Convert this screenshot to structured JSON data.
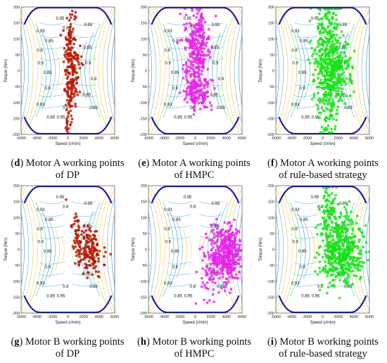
{
  "captions": [
    {
      "letter": "d",
      "line1": "Motor A working points",
      "line2": "of DP"
    },
    {
      "letter": "e",
      "line1": "Motor A working points",
      "line2": "of HMPC"
    },
    {
      "letter": "f",
      "line1": "Motor A working points",
      "line2": "of rule-based strategy"
    },
    {
      "letter": "g",
      "line1": "Motor B working points",
      "line2": "of DP"
    },
    {
      "letter": "h",
      "line1": "Motor B working points",
      "line2": "of HMPC"
    },
    {
      "letter": "i",
      "line1": "Motor B working points",
      "line2": "of rule-based strategy"
    }
  ],
  "chart_data": [
    {
      "id": "d",
      "type": "scatter",
      "xlabel": "Speed (r/min)",
      "ylabel": "Torque (Nm)",
      "xlim": [
        -6000,
        6000
      ],
      "ylim": [
        -200,
        200
      ],
      "xticks": [
        "-6000",
        "-4000",
        "-2000",
        "0",
        "2000",
        "4000",
        "6000"
      ],
      "yticks": [
        "200",
        "150",
        "100",
        "50",
        "0",
        "-50",
        "-100",
        "-150",
        "-200"
      ],
      "contour_labels": [
        "0.93",
        "0.85",
        "0.9",
        "0.8",
        "0.95"
      ],
      "marker_color": "#cc1a00",
      "marker_edge": "#7a1000",
      "clusters": [
        {
          "cx": 300,
          "cy": 90,
          "sx": 350,
          "sy": 60,
          "n": 90
        },
        {
          "cx": 700,
          "cy": 10,
          "sx": 600,
          "sy": 40,
          "n": 60
        },
        {
          "cx": 400,
          "cy": -60,
          "sx": 400,
          "sy": 40,
          "n": 60
        },
        {
          "cx": 0,
          "cy": -140,
          "sx": 250,
          "sy": 30,
          "n": 25
        }
      ]
    },
    {
      "id": "e",
      "type": "scatter",
      "xlabel": "Speed (r/min)",
      "ylabel": "Torque (Nm)",
      "xlim": [
        -6000,
        6000
      ],
      "ylim": [
        -200,
        200
      ],
      "xticks": [
        "-6000",
        "-4000",
        "-2000",
        "0",
        "2000",
        "4000",
        "6000"
      ],
      "yticks": [
        "200",
        "150",
        "100",
        "50",
        "0",
        "-50",
        "-100",
        "-150",
        "-200"
      ],
      "contour_labels": [
        "0.93",
        "0.85",
        "0.9",
        "0.8",
        "0.95"
      ],
      "marker_color": "#ff33ff",
      "marker_edge": "#b300b3",
      "clusters": [
        {
          "cx": 200,
          "cy": 80,
          "sx": 800,
          "sy": 55,
          "n": 260
        },
        {
          "cx": 300,
          "cy": -70,
          "sx": 900,
          "sy": 25,
          "n": 140
        },
        {
          "cx": -300,
          "cy": 0,
          "sx": 600,
          "sy": 60,
          "n": 50
        }
      ]
    },
    {
      "id": "f",
      "type": "scatter",
      "xlabel": "Speed (r/min)",
      "ylabel": "Torque (Nm)",
      "xlim": [
        -6000,
        6000
      ],
      "ylim": [
        -200,
        200
      ],
      "xticks": [
        "-6000",
        "-4000",
        "-2000",
        "0",
        "2000",
        "4000",
        "6000"
      ],
      "yticks": [
        "200",
        "150",
        "100",
        "50",
        "0",
        "-50",
        "-100",
        "-150",
        "-200"
      ],
      "contour_labels": [
        "0.93",
        "0.85",
        "0.9",
        "0.8",
        "0.95"
      ],
      "marker_color": "#1aff1a",
      "marker_edge": "#00a000",
      "clusters": [
        {
          "cx": 800,
          "cy": 20,
          "sx": 900,
          "sy": 100,
          "n": 520
        },
        {
          "cx": 2400,
          "cy": 0,
          "sx": 900,
          "sy": 50,
          "n": 80
        }
      ]
    },
    {
      "id": "g",
      "type": "scatter",
      "xlabel": "Speed (r/min)",
      "ylabel": "Torque (Nm)",
      "xlim": [
        -6000,
        6000
      ],
      "ylim": [
        -200,
        200
      ],
      "xticks": [
        "-6000",
        "-4000",
        "-2000",
        "0",
        "2000",
        "4000",
        "6000"
      ],
      "yticks": [
        "200",
        "150",
        "100",
        "50",
        "0",
        "-50",
        "-100",
        "-150",
        "-200"
      ],
      "contour_labels": [
        "0.93",
        "0.85",
        "0.9",
        "0.8",
        "0.95"
      ],
      "marker_color": "#cc1a00",
      "marker_edge": "#7a1000",
      "clusters": [
        {
          "cx": 2600,
          "cy": 0,
          "sx": 900,
          "sy": 35,
          "n": 130
        },
        {
          "cx": 1200,
          "cy": 70,
          "sx": 500,
          "sy": 40,
          "n": 30
        },
        {
          "cx": 3500,
          "cy": -40,
          "sx": 900,
          "sy": 25,
          "n": 30
        }
      ]
    },
    {
      "id": "h",
      "type": "scatter",
      "xlabel": "Speed (r/min)",
      "ylabel": "Torque (Nm)",
      "xlim": [
        -6000,
        6000
      ],
      "ylim": [
        -200,
        200
      ],
      "xticks": [
        "-6000",
        "-4000",
        "-2000",
        "0",
        "2000",
        "4000",
        "6000"
      ],
      "yticks": [
        "200",
        "150",
        "100",
        "50",
        "0",
        "-50",
        "-100",
        "-150",
        "-200"
      ],
      "contour_labels": [
        "0.93",
        "0.85",
        "0.9",
        "0.8",
        "0.95"
      ],
      "marker_color": "#ff33ff",
      "marker_edge": "#b300b3",
      "clusters": [
        {
          "cx": 4300,
          "cy": -10,
          "sx": 700,
          "sy": 45,
          "n": 320
        },
        {
          "cx": 2600,
          "cy": -20,
          "sx": 900,
          "sy": 40,
          "n": 120
        },
        {
          "cx": 1500,
          "cy": -100,
          "sx": 500,
          "sy": 40,
          "n": 30
        }
      ]
    },
    {
      "id": "i",
      "type": "scatter",
      "xlabel": "Speed (r/min)",
      "ylabel": "Torque (Nm)",
      "xlim": [
        -6000,
        6000
      ],
      "ylim": [
        -200,
        200
      ],
      "xticks": [
        "-6000",
        "-4000",
        "-2000",
        "0",
        "2000",
        "4000",
        "6000"
      ],
      "yticks": [
        "200",
        "150",
        "100",
        "50",
        "0",
        "-50",
        "-100",
        "-150",
        "-200"
      ],
      "contour_labels": [
        "0.93",
        "0.85",
        "0.9",
        "0.8",
        "0.95"
      ],
      "marker_color": "#1aff1a",
      "marker_edge": "#00a000",
      "clusters": [
        {
          "cx": 2000,
          "cy": 0,
          "sx": 1200,
          "sy": 60,
          "n": 420
        },
        {
          "cx": 800,
          "cy": 120,
          "sx": 500,
          "sy": 50,
          "n": 80
        },
        {
          "cx": 3800,
          "cy": -10,
          "sx": 900,
          "sy": 40,
          "n": 80
        }
      ]
    }
  ]
}
